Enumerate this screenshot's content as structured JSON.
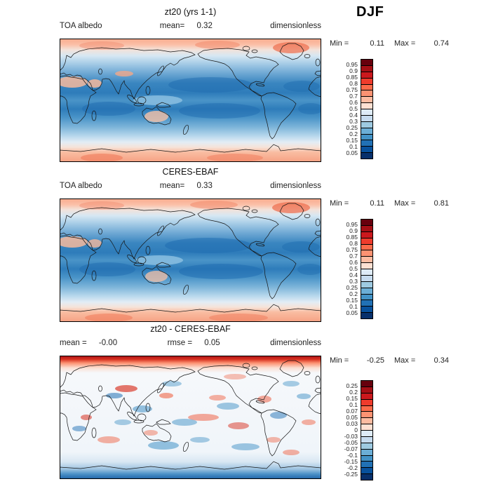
{
  "season": "DJF",
  "panels": [
    {
      "id": "model",
      "title": "zt20 (yrs 1-1)",
      "info_left_label": "TOA albedo",
      "info_left_value": "",
      "info_center_label": "mean=",
      "info_center_value": "0.32",
      "units": "dimensionless",
      "min_label": "Min =",
      "min_value": "0.11",
      "max_label": "Max =",
      "max_value": "0.74",
      "colorbar": "albedo"
    },
    {
      "id": "obs",
      "title": "CERES-EBAF",
      "info_left_label": "TOA albedo",
      "info_left_value": "",
      "info_center_label": "mean=",
      "info_center_value": "0.33",
      "units": "dimensionless",
      "min_label": "Min =",
      "min_value": "0.11",
      "max_label": "Max =",
      "max_value": "0.81",
      "colorbar": "albedo"
    },
    {
      "id": "diff",
      "title": "zt20 - CERES-EBAF",
      "info_left_label": "mean =",
      "info_left_value": "-0.00",
      "info_center_label": "rmse =",
      "info_center_value": "0.05",
      "units": "dimensionless",
      "min_label": "Min =",
      "min_value": "-0.25",
      "max_label": "Max =",
      "max_value": "0.34",
      "colorbar": "difference"
    }
  ],
  "colorbars": {
    "albedo": {
      "labels": [
        "0.95",
        "0.9",
        "0.85",
        "0.8",
        "0.75",
        "0.7",
        "0.6",
        "0.5",
        "0.4",
        "0.3",
        "0.25",
        "0.2",
        "0.15",
        "0.1",
        "0.05"
      ],
      "colors": [
        "#67000d",
        "#a50f15",
        "#cb181d",
        "#ef3b2c",
        "#fb6a4a",
        "#fc9272",
        "#fcbba1",
        "#fee0d2",
        "#deebf7",
        "#c6dbef",
        "#9ecae1",
        "#6baed6",
        "#4292c6",
        "#2171b5",
        "#08519c",
        "#08306b"
      ]
    },
    "difference": {
      "labels": [
        "0.25",
        "0.2",
        "0.15",
        "0.1",
        "0.07",
        "0.05",
        "0.03",
        "0",
        "-0.03",
        "-0.05",
        "-0.07",
        "-0.1",
        "-0.15",
        "-0.2",
        "-0.25"
      ],
      "colors": [
        "#67000d",
        "#a50f15",
        "#cb181d",
        "#ef3b2c",
        "#fb6a4a",
        "#fc9272",
        "#fcbba1",
        "#fee0d2",
        "#deebf7",
        "#c6dbef",
        "#9ecae1",
        "#6baed6",
        "#4292c6",
        "#2171b5",
        "#08519c",
        "#08306b"
      ]
    }
  },
  "chart_data": [
    {
      "type": "heatmap",
      "subtype": "filled-contour global map",
      "projection": "cylindrical lat-lon, 0E at left edge, Pacific centered",
      "title": "zt20 (yrs 1-1)",
      "variable": "TOA albedo",
      "units": "dimensionless",
      "season": "DJF",
      "stats": {
        "mean": 0.32,
        "min": 0.11,
        "max": 0.74
      },
      "contour_levels": [
        0.05,
        0.1,
        0.15,
        0.2,
        0.25,
        0.3,
        0.4,
        0.5,
        0.6,
        0.7,
        0.75,
        0.8,
        0.85,
        0.9,
        0.95
      ],
      "legend_position": "right",
      "pattern_notes": "Dark blue (albedo 0.05-0.2) over subtropical oceans in both hemispheres; medium blue midlatitude oceans; light blue/white over ITCZ and stratus regions; salmon-to-red high albedo (0.6-0.95) over Arctic, Greenland, Antarctica; pinkish patches over Sahara, Arabia, Tibet and Australian deserts."
    },
    {
      "type": "heatmap",
      "subtype": "filled-contour global map",
      "projection": "cylindrical lat-lon, 0E at left edge, Pacific centered",
      "title": "CERES-EBAF",
      "variable": "TOA albedo",
      "units": "dimensionless",
      "season": "DJF",
      "stats": {
        "mean": 0.33,
        "min": 0.11,
        "max": 0.81
      },
      "contour_levels": [
        0.05,
        0.1,
        0.15,
        0.2,
        0.25,
        0.3,
        0.4,
        0.5,
        0.6,
        0.7,
        0.75,
        0.8,
        0.85,
        0.9,
        0.95
      ],
      "legend_position": "right",
      "pattern_notes": "Observed field, same spatial structure as model panel: dark blue subtropical oceans, salmon/red polar ice caps and bright deserts."
    },
    {
      "type": "heatmap",
      "subtype": "filled-contour global difference map",
      "projection": "cylindrical lat-lon, 0E at left edge, Pacific centered",
      "title": "zt20 - CERES-EBAF",
      "variable": "TOA albedo difference (model minus observations)",
      "units": "dimensionless",
      "season": "DJF",
      "stats": {
        "mean": -0.0,
        "rmse": 0.05,
        "min": -0.25,
        "max": 0.34
      },
      "contour_levels": [
        -0.25,
        -0.2,
        -0.15,
        -0.1,
        -0.07,
        -0.05,
        -0.03,
        0,
        0.03,
        0.05,
        0.07,
        0.1,
        0.15,
        0.2,
        0.25
      ],
      "legend_position": "right",
      "pattern_notes": "Near-zero (white) over most of the globe with scattered +/-0.03 to 0.15 anomalies; strong positive (dark red) band along the Arctic edge at top; red patch over central Asia/Tibet; negative (blue) band near the Antarctic sea-ice edge at bottom."
    }
  ]
}
